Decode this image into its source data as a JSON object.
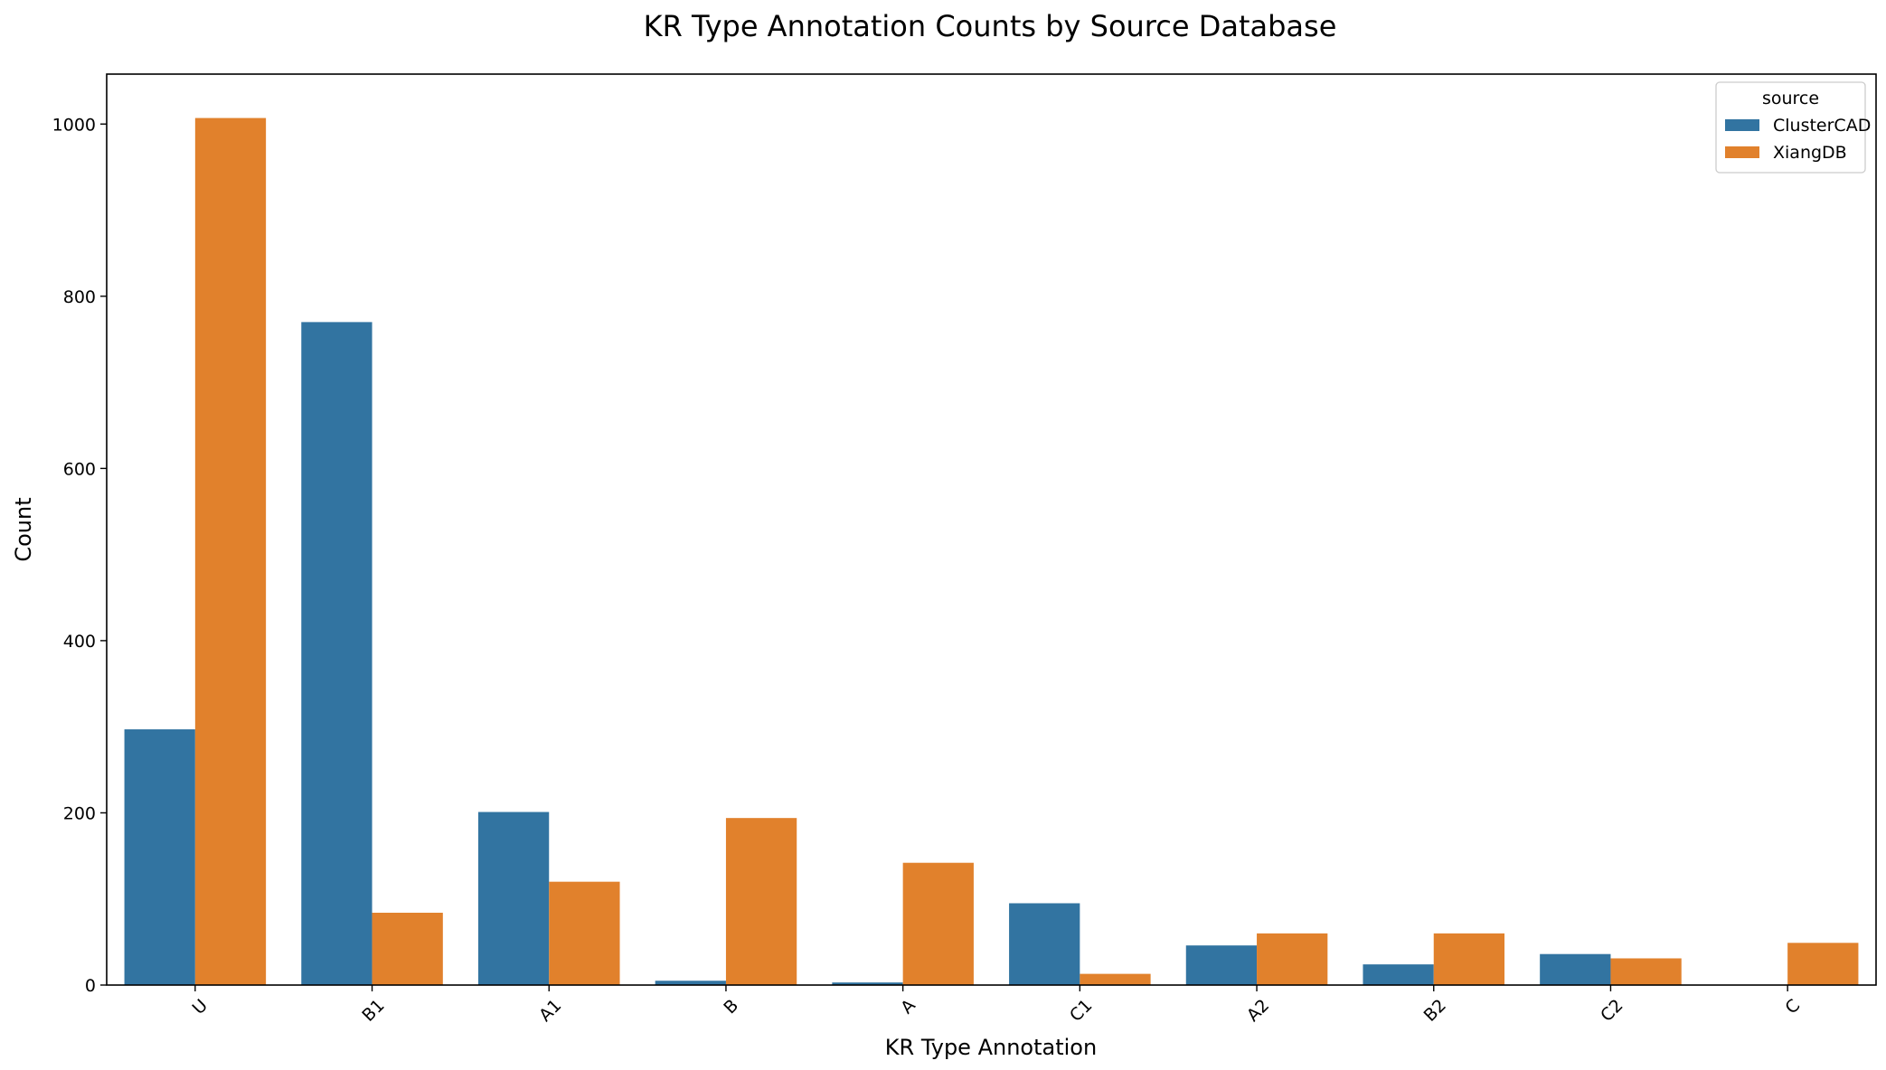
{
  "chart_data": {
    "type": "bar",
    "title": "KR Type Annotation Counts by Source Database",
    "xlabel": "KR Type Annotation",
    "ylabel": "Count",
    "categories": [
      "U",
      "B1",
      "A1",
      "B",
      "A",
      "C1",
      "A2",
      "B2",
      "C2",
      "C"
    ],
    "series": [
      {
        "name": "ClusterCAD",
        "color": "#3274a1",
        "values": [
          297,
          770,
          201,
          5,
          3,
          95,
          46,
          24,
          36,
          0
        ]
      },
      {
        "name": "XiangDB",
        "color": "#e1812c",
        "values": [
          1007,
          84,
          120,
          194,
          142,
          13,
          60,
          60,
          31,
          49
        ]
      }
    ],
    "ylim": [
      0,
      1058
    ],
    "yticks": [
      0,
      200,
      400,
      600,
      800,
      1000
    ],
    "legend": {
      "title": "source",
      "placement": "top-right"
    },
    "grid": false
  }
}
